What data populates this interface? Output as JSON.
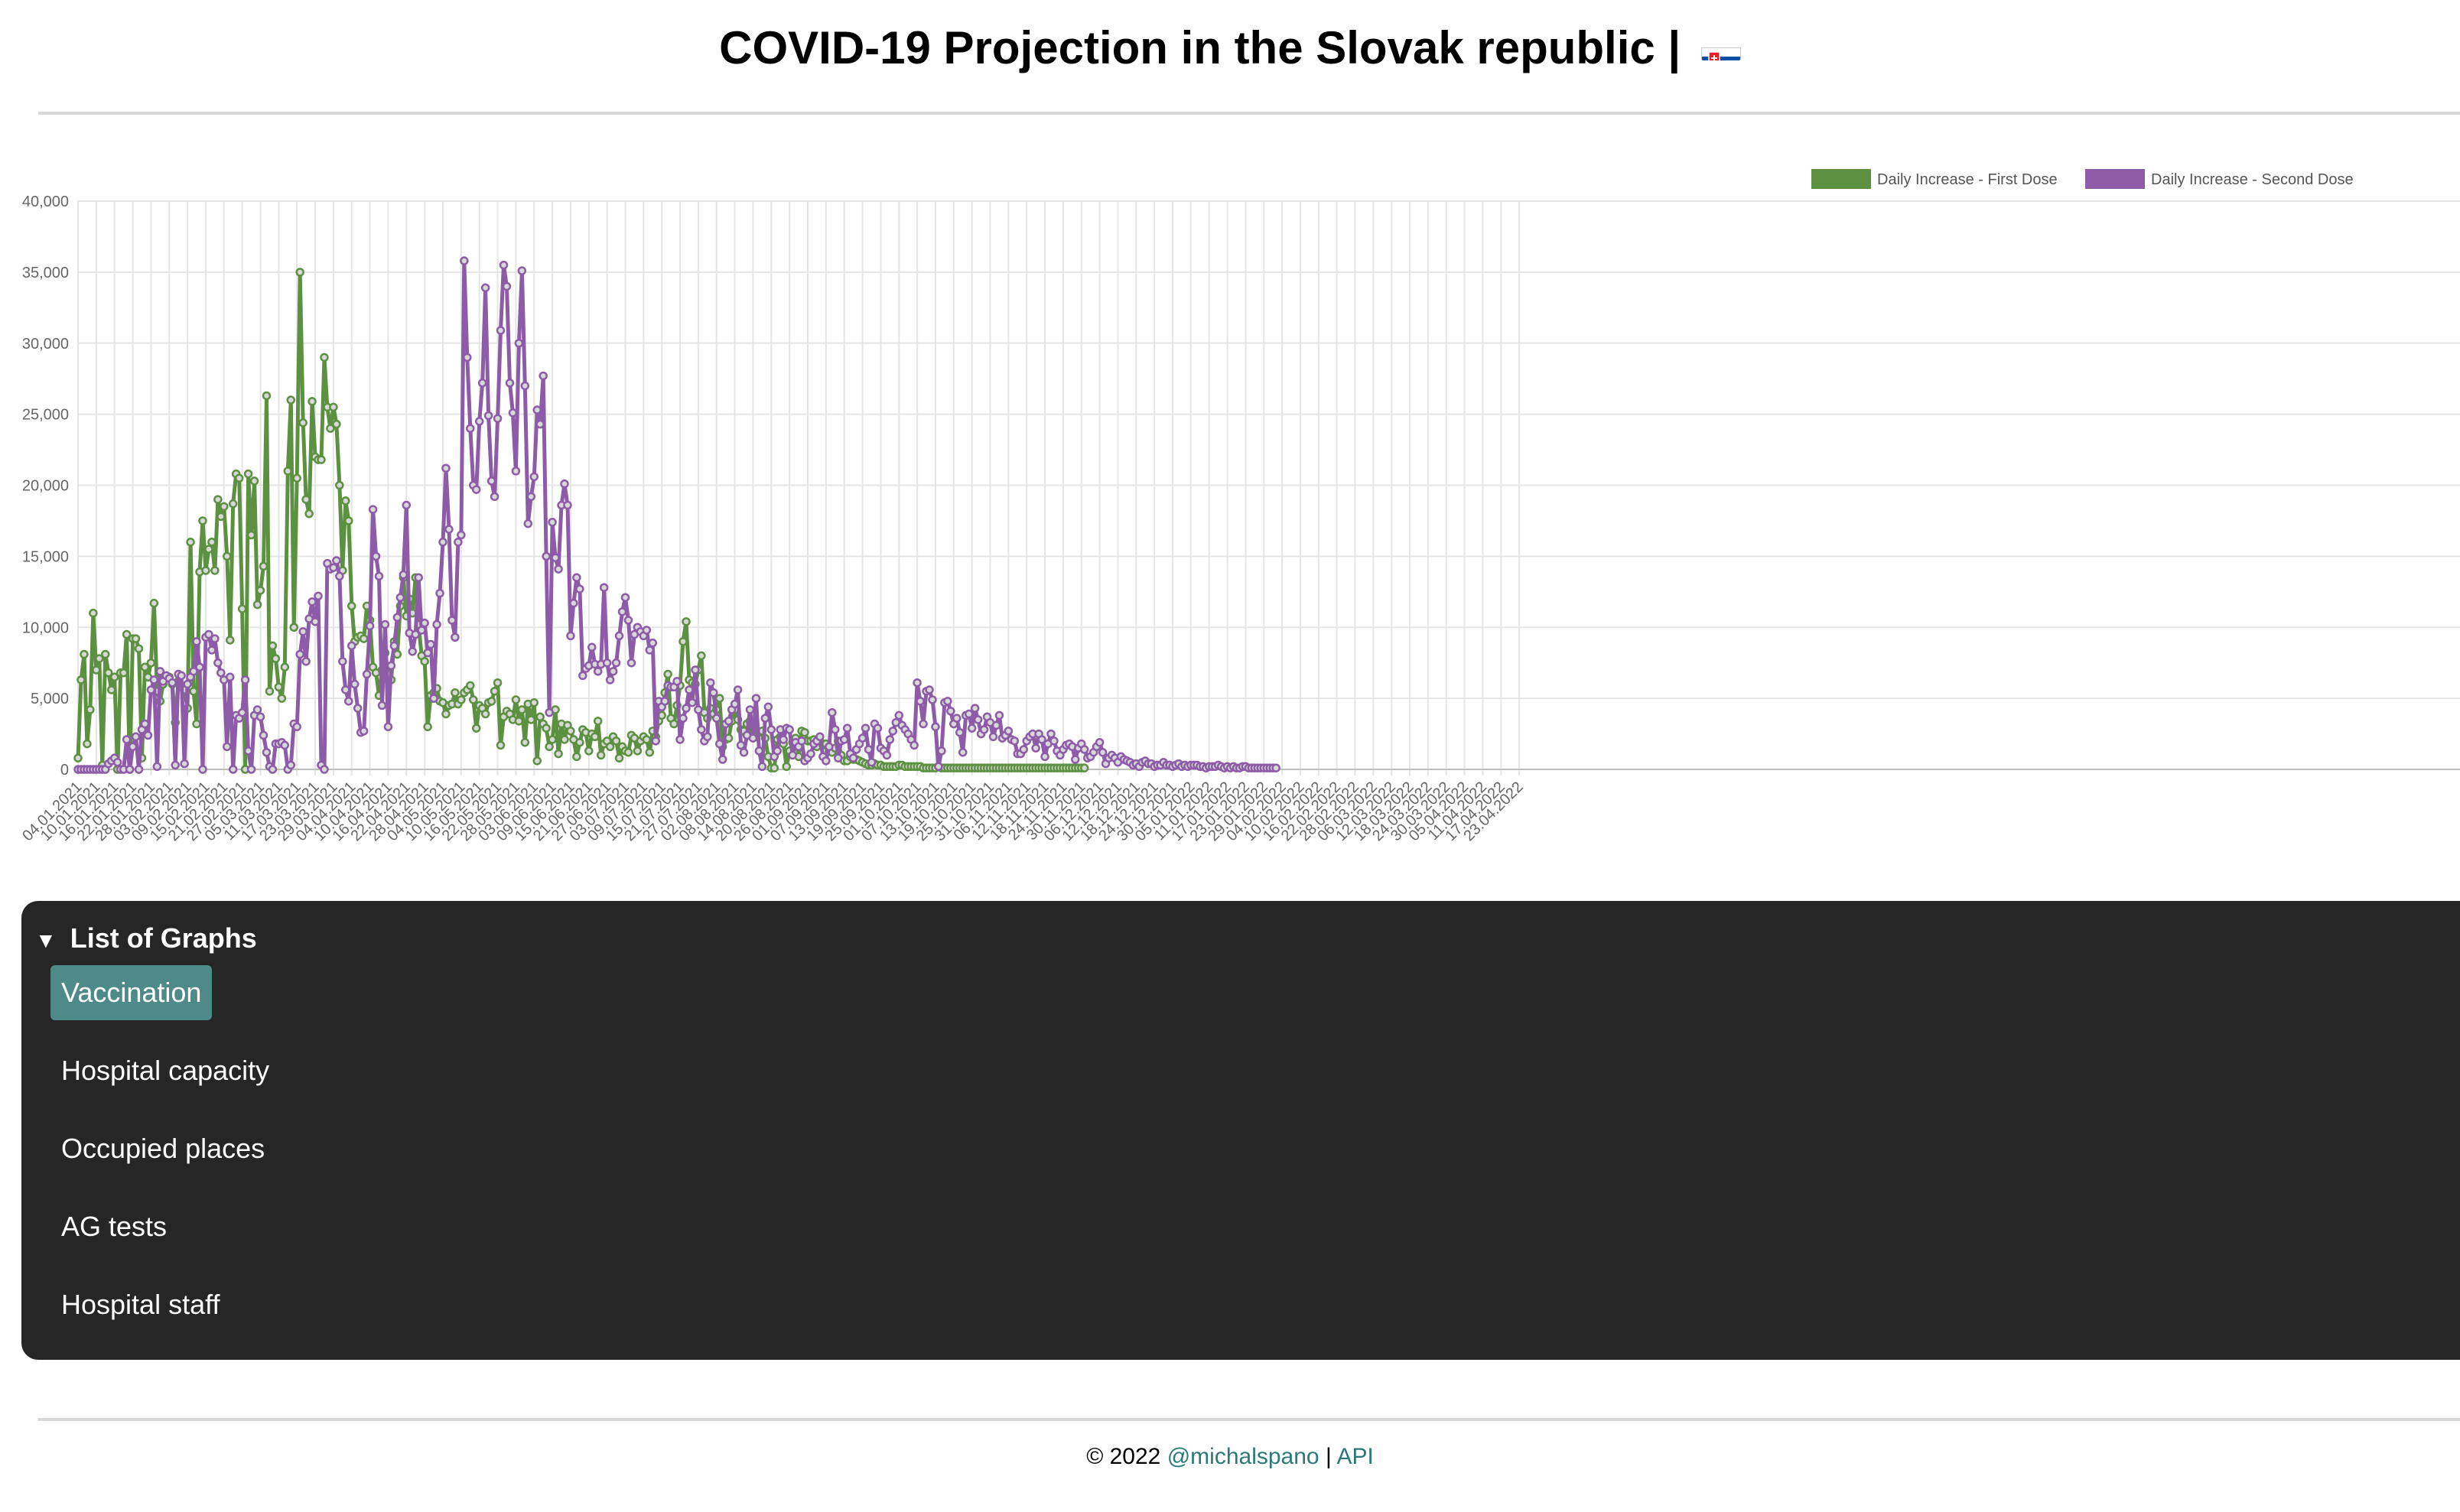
{
  "page": {
    "title": "COVID-19 Projection in the Slovak republic |",
    "flag_icon": "slovak-flag-icon"
  },
  "panel": {
    "title": "List of Graphs",
    "items": [
      "Vaccination",
      "Hospital capacity",
      "Occupied places",
      "AG tests",
      "Hospital staff"
    ],
    "active_index": 0,
    "accent": "#4e8a87"
  },
  "footer": {
    "copyright": "© 2022",
    "author": "@michalspano",
    "separator": "|",
    "api": "API",
    "link_color": "#2b7a78"
  },
  "chart_data": {
    "type": "line",
    "title": "",
    "xlabel": "",
    "ylabel": "",
    "ylim": [
      0,
      40000
    ],
    "yticks": [
      0,
      5000,
      10000,
      15000,
      20000,
      25000,
      30000,
      35000,
      40000
    ],
    "ytick_labels": [
      "0",
      "5,000",
      "10,000",
      "15,000",
      "20,000",
      "25,000",
      "30,000",
      "35,000",
      "40,000"
    ],
    "legend_position": "top-right",
    "grid": true,
    "x_tick_labels": [
      "04.01.2021",
      "10.01.2021",
      "16.01.2021",
      "22.01.2021",
      "28.01.2021",
      "03.02.2021",
      "09.02.2021",
      "15.02.2021",
      "21.02.2021",
      "27.02.2021",
      "05.03.2021",
      "11.03.2021",
      "17.03.2021",
      "23.03.2021",
      "29.03.2021",
      "04.04.2021",
      "10.04.2021",
      "16.04.2021",
      "22.04.2021",
      "28.04.2021",
      "04.05.2021",
      "10.05.2021",
      "16.05.2021",
      "22.05.2021",
      "28.05.2021",
      "03.06.2021",
      "09.06.2021",
      "15.06.2021",
      "21.06.2021",
      "27.06.2021",
      "03.07.2021",
      "09.07.2021",
      "15.07.2021",
      "21.07.2021",
      "27.07.2021",
      "02.08.2021",
      "08.08.2021",
      "14.08.2021",
      "20.08.2021",
      "26.08.2021",
      "01.09.2021",
      "07.09.2021",
      "13.09.2021",
      "19.09.2021",
      "25.09.2021",
      "01.10.2021",
      "07.10.2021",
      "13.10.2021",
      "19.10.2021",
      "25.10.2021",
      "31.10.2021",
      "06.11.2021",
      "12.11.2021",
      "18.11.2021",
      "24.11.2021",
      "30.11.2021",
      "06.12.2021",
      "12.12.2021",
      "18.12.2021",
      "24.12.2021",
      "30.12.2021",
      "05.01.2022",
      "11.01.2022",
      "17.01.2022",
      "23.01.2022",
      "29.01.2022",
      "04.02.2022",
      "10.02.2022",
      "16.02.2022",
      "22.02.2022",
      "28.02.2022",
      "06.03.2022",
      "12.03.2022",
      "18.03.2022",
      "24.03.2022",
      "30.03.2022",
      "05.04.2022",
      "11.04.2022",
      "17.04.2022",
      "23.04.2022"
    ],
    "series": [
      {
        "name": "Daily Increase - First Dose",
        "color": "#5b9140",
        "values": [
          800,
          6300,
          8100,
          1800,
          4200,
          11000,
          7000,
          7800,
          300,
          8100,
          6800,
          5600,
          6500,
          0,
          6800,
          6800,
          9500,
          0,
          9200,
          9200,
          8500,
          800,
          7200,
          6500,
          7500,
          11700,
          5500,
          4800,
          6000,
          6500,
          6500,
          6000,
          3300,
          6200,
          5800,
          5600,
          4300,
          16000,
          5500,
          3200,
          13900,
          17500,
          14000,
          15500,
          16000,
          14000,
          19000,
          17800,
          18500,
          15000,
          9100,
          18700,
          20800,
          20500,
          11300,
          0,
          20800,
          16500,
          20300,
          11600,
          12600,
          14300,
          26300,
          5500,
          8700,
          7800,
          5800,
          5000,
          7200,
          21000,
          26000,
          10000,
          20500,
          35000,
          24400,
          19000,
          18000,
          25900,
          22000,
          21800,
          21800,
          29000,
          25500,
          24000,
          25500,
          24300,
          20000,
          14000,
          18900,
          17500,
          11500,
          9000,
          9300,
          9400,
          9200,
          11500,
          10500,
          7200,
          6800,
          5200,
          7000,
          8200,
          6700,
          6300,
          9000,
          8100,
          11500,
          13500,
          10800,
          12000,
          11000,
          13500,
          10200,
          8000,
          7600,
          3000,
          5200,
          5400,
          5700,
          4800,
          4700,
          3900,
          4500,
          4600,
          5400,
          4600,
          4900,
          5400,
          5600,
          5900,
          4900,
          2900,
          4500,
          4300,
          3900,
          4700,
          4800,
          5500,
          6100,
          1700,
          3700,
          4100,
          3900,
          3500,
          4900,
          3400,
          4200,
          1900,
          4600,
          3500,
          4700,
          600,
          3700,
          3200,
          2900,
          1600,
          2100,
          4200,
          1100,
          3200,
          2100,
          3100,
          2700,
          2100,
          900,
          1900,
          2800,
          2600,
          1300,
          2500,
          2300,
          3400,
          1000,
          1800,
          2000,
          1600,
          2300,
          2000,
          800,
          1600,
          1300,
          1200,
          2400,
          2200,
          1300,
          2000,
          2300,
          2100,
          1200,
          2700,
          2300,
          3400,
          3800,
          5400,
          6700,
          3600,
          3200,
          4500,
          5900,
          9000,
          10400,
          6300,
          6100,
          6000,
          7000,
          8000,
          4000,
          3600,
          4300,
          3900,
          4200,
          5000,
          1600,
          2100,
          2200,
          3400,
          4200,
          3500,
          2800,
          2700,
          3200,
          3400,
          2800,
          2300,
          2600,
          2700,
          2200,
          900,
          100,
          100,
          2100,
          2300,
          1800,
          200,
          1300,
          1900,
          2200,
          900,
          2700,
          2600,
          2000,
          2000,
          2100,
          1600,
          2000,
          1700,
          1800,
          1300,
          1200,
          1500,
          2000,
          1000,
          600,
          600,
          900,
          700,
          700,
          600,
          500,
          400,
          300,
          300,
          400,
          300,
          300,
          200,
          200,
          200,
          200,
          200,
          300,
          300,
          200,
          200,
          200,
          200,
          200,
          200,
          100,
          100,
          100,
          100,
          100,
          200,
          100,
          100,
          100,
          100,
          100,
          100,
          100,
          100,
          100,
          100,
          100,
          100,
          100,
          100,
          100,
          100,
          100,
          100,
          100,
          100,
          100,
          100,
          100,
          100,
          100,
          100,
          100,
          100,
          100,
          100,
          100,
          100,
          100,
          100,
          100,
          100,
          100,
          100,
          100,
          100,
          100,
          100,
          100,
          100,
          100,
          100,
          100,
          100
        ]
      },
      {
        "name": "Daily Increase - Second Dose",
        "color": "#8e5ba8",
        "values": [
          0,
          0,
          0,
          0,
          0,
          0,
          0,
          0,
          0,
          0,
          400,
          600,
          800,
          500,
          0,
          0,
          2100,
          0,
          1600,
          2300,
          0,
          2800,
          3200,
          2400,
          5600,
          6300,
          200,
          6900,
          6200,
          6600,
          6400,
          6100,
          300,
          6700,
          6600,
          400,
          6000,
          6500,
          6900,
          9000,
          7200,
          0,
          9300,
          9500,
          8400,
          9200,
          7500,
          6800,
          6300,
          1600,
          6500,
          0,
          3800,
          3600,
          4000,
          6300,
          1300,
          0,
          3800,
          4200,
          3700,
          2400,
          1200,
          200,
          0,
          1800,
          1800,
          1900,
          1700,
          0,
          300,
          3200,
          3000,
          8100,
          9700,
          7600,
          10600,
          11800,
          10400,
          12200,
          300,
          0,
          14500,
          14100,
          14200,
          14700,
          13600,
          7600,
          5600,
          4800,
          8700,
          6000,
          4300,
          2600,
          2700,
          6700,
          10100,
          18300,
          15000,
          13600,
          4500,
          10200,
          3000,
          7300,
          8700,
          10700,
          12100,
          13700,
          18600,
          9600,
          8300,
          9500,
          13500,
          9800,
          10300,
          8200,
          8800,
          5000,
          10200,
          12400,
          16000,
          21200,
          16900,
          10500,
          9300,
          16000,
          16500,
          35800,
          29000,
          24000,
          20000,
          19700,
          24500,
          27200,
          33900,
          24900,
          20300,
          19200,
          24700,
          30900,
          35500,
          34000,
          27200,
          25100,
          21000,
          30000,
          35100,
          27000,
          17300,
          19200,
          20600,
          25300,
          24300,
          27700,
          15000,
          4000,
          17400,
          14900,
          14100,
          18600,
          20100,
          18600,
          9400,
          11700,
          13500,
          12700,
          6600,
          7100,
          7300,
          8600,
          7400,
          6900,
          7400,
          12800,
          7500,
          6300,
          6900,
          7500,
          9400,
          11100,
          12100,
          10500,
          7500,
          9500,
          10000,
          9700,
          9400,
          9800,
          8400,
          8900,
          2000,
          4800,
          4400,
          4800,
          5900,
          5800,
          5800,
          6200,
          2100,
          3600,
          4300,
          5600,
          4700,
          7000,
          4200,
          2800,
          2000,
          2300,
          6100,
          5400,
          3600,
          1800,
          700,
          3200,
          3400,
          4200,
          4600,
          5600,
          1700,
          1200,
          2400,
          4200,
          2200,
          5000,
          1300,
          200,
          3600,
          4400,
          2800,
          900,
          1300,
          2800,
          2100,
          2900,
          2800,
          1000,
          1900,
          1600,
          2000,
          600,
          800,
          1100,
          1800,
          2000,
          2300,
          900,
          600,
          1600,
          4000,
          2800,
          800,
          2000,
          2100,
          2900,
          1100,
          800,
          1400,
          1800,
          2200,
          2900,
          1400,
          500,
          3200,
          2900,
          1500,
          1300,
          1000,
          2100,
          2700,
          3300,
          3800,
          3100,
          2800,
          2500,
          2100,
          1700,
          6100,
          4800,
          3200,
          5500,
          5600,
          4900,
          3000,
          200,
          1300,
          4700,
          4800,
          4100,
          3200,
          3600,
          2600,
          1200,
          3800,
          3900,
          2900,
          4300,
          3500,
          2500,
          2800,
          3700,
          3300,
          2300,
          3100,
          3800,
          2200,
          2400,
          2700,
          2100,
          2000,
          1100,
          1100,
          1400,
          2000,
          2300,
          2500,
          1500,
          2500,
          2100,
          900,
          1800,
          2500,
          2000,
          1300,
          1000,
          1400,
          1700,
          1800,
          1600,
          700,
          1500,
          1800,
          1400,
          800,
          900,
          1200,
          1600,
          1900,
          1200,
          400,
          800,
          1000,
          800,
          500,
          900,
          700,
          600,
          500,
          300,
          400,
          200,
          500,
          600,
          400,
          400,
          200,
          300,
          300,
          500,
          300,
          300,
          200,
          300,
          400,
          200,
          300,
          200,
          300,
          300,
          300,
          200,
          200,
          100,
          200,
          200,
          200,
          300,
          200,
          100,
          200,
          100,
          200,
          100,
          100,
          200,
          200,
          100,
          100,
          100,
          100,
          100,
          100,
          100,
          100,
          100,
          100
        ]
      }
    ]
  }
}
